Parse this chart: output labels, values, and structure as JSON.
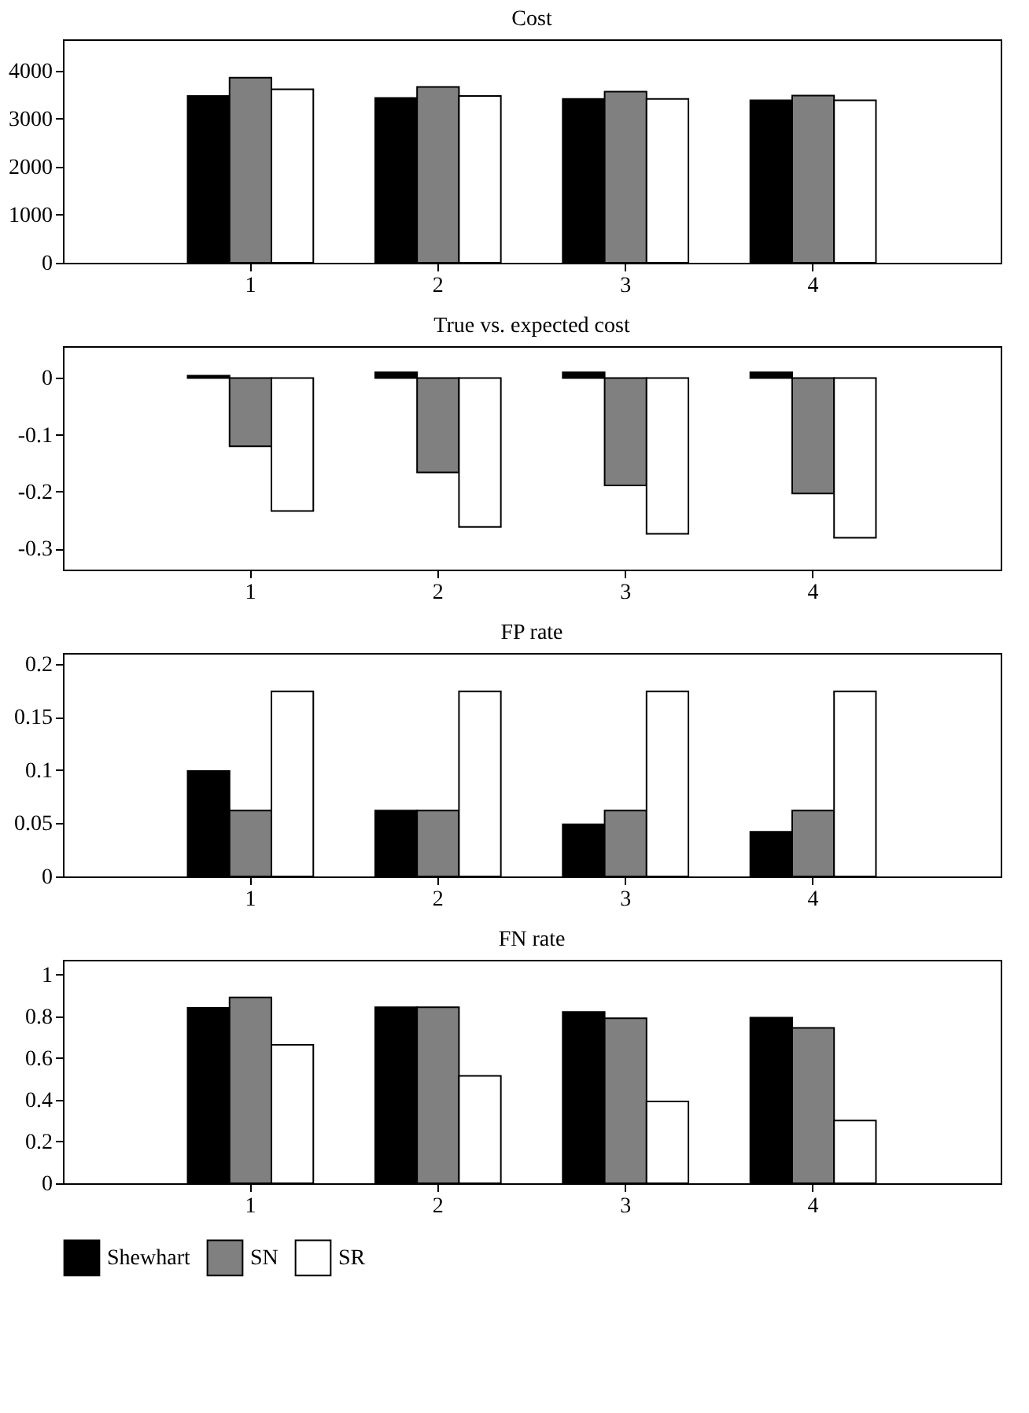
{
  "chart_data": [
    {
      "type": "bar",
      "title": "Cost",
      "categories": [
        "1",
        "2",
        "3",
        "4"
      ],
      "ylim": [
        0,
        4650
      ],
      "yticks": [
        0,
        1000,
        2000,
        3000,
        4000
      ],
      "series": [
        {
          "color": "#000000",
          "values": [
            3470,
            3430,
            3410,
            3380
          ]
        },
        {
          "color": "#808080",
          "values": [
            3850,
            3660,
            3560,
            3480
          ]
        },
        {
          "color": "#ffffff",
          "values": [
            3610,
            3470,
            3410,
            3380
          ]
        }
      ]
    },
    {
      "type": "bar",
      "title": "True vs. expected cost",
      "categories": [
        "1",
        "2",
        "3",
        "4"
      ],
      "ylim": [
        -0.337,
        0.056
      ],
      "yticks": [
        -0.3,
        -0.2,
        -0.1,
        0
      ],
      "series": [
        {
          "color": "#000000",
          "values": [
            0.004,
            0.01,
            0.01,
            0.01
          ]
        },
        {
          "color": "#808080",
          "values": [
            -0.12,
            -0.166,
            -0.189,
            -0.203
          ]
        },
        {
          "color": "#ffffff",
          "values": [
            -0.234,
            -0.262,
            -0.274,
            -0.281
          ]
        }
      ]
    },
    {
      "type": "bar",
      "title": "FP rate",
      "categories": [
        "1",
        "2",
        "3",
        "4"
      ],
      "ylim": [
        0,
        0.21
      ],
      "yticks": [
        0,
        0.05,
        0.1,
        0.15,
        0.2
      ],
      "series": [
        {
          "color": "#000000",
          "values": [
            0.099,
            0.062,
            0.049,
            0.042
          ]
        },
        {
          "color": "#808080",
          "values": [
            0.062,
            0.062,
            0.062,
            0.062
          ]
        },
        {
          "color": "#ffffff",
          "values": [
            0.174,
            0.174,
            0.174,
            0.174
          ]
        }
      ]
    },
    {
      "type": "bar",
      "title": "FN rate",
      "categories": [
        "1",
        "2",
        "3",
        "4"
      ],
      "ylim": [
        0,
        1.07
      ],
      "yticks": [
        0,
        0.2,
        0.4,
        0.6,
        0.8,
        1
      ],
      "legend": "bottom",
      "series": [
        {
          "name": "Shewhart",
          "color": "#000000",
          "values": [
            0.84,
            0.843,
            0.82,
            0.793
          ]
        },
        {
          "name": "SN",
          "color": "#808080",
          "values": [
            0.89,
            0.843,
            0.79,
            0.744
          ]
        },
        {
          "name": "SR",
          "color": "#ffffff",
          "values": [
            0.663,
            0.514,
            0.392,
            0.3
          ]
        }
      ]
    }
  ]
}
